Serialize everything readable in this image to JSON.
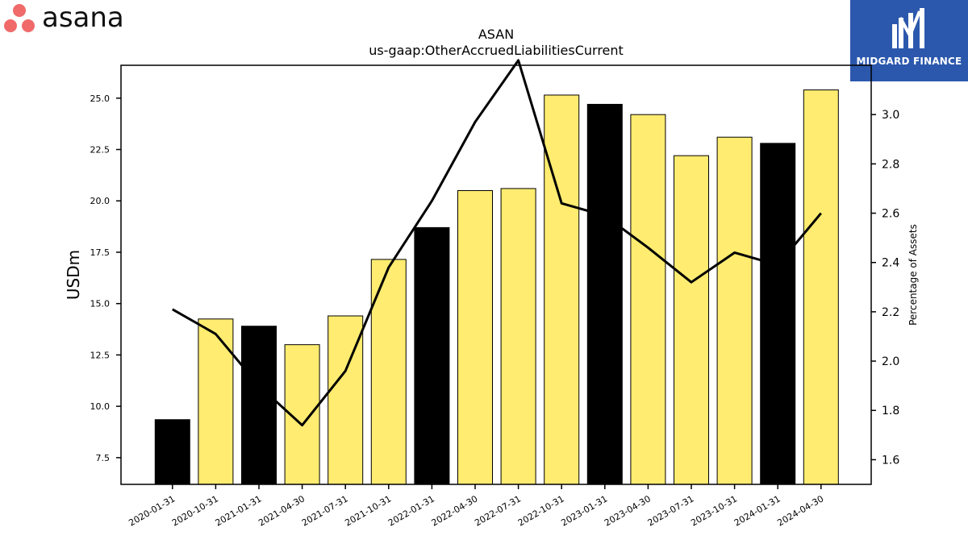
{
  "logos": {
    "left": {
      "text": "asana",
      "icon": "asana-dots-icon",
      "dot_color": "#f06a6a"
    },
    "right": {
      "text": "MIDGARD FINANCE",
      "icon": "midgard-m-icon",
      "background": "#2b58ad"
    }
  },
  "chart_data": {
    "type": "bar",
    "title": "ASAN",
    "subtitle": "us-gaap:OtherAccruedLiabilitiesCurrent",
    "ylabel": "USDm",
    "y2label": "Percentage of Assets",
    "categories": [
      "2020-01-31",
      "2020-10-31",
      "2021-01-31",
      "2021-04-30",
      "2021-07-31",
      "2021-10-31",
      "2022-01-31",
      "2022-04-30",
      "2022-07-31",
      "2022-10-31",
      "2023-01-31",
      "2023-04-30",
      "2023-07-31",
      "2023-10-31",
      "2024-01-31",
      "2024-04-30"
    ],
    "series": [
      {
        "values": [
          9.35,
          14.25,
          13.9,
          13.0,
          14.4,
          17.15,
          18.7,
          20.5,
          20.6,
          25.15,
          24.7,
          24.2,
          22.2,
          23.1,
          22.8,
          25.4
        ]
      }
    ],
    "bar_colors": [
      "#000000",
      "#ffec70",
      "#000000",
      "#ffec70",
      "#ffec70",
      "#ffec70",
      "#000000",
      "#ffec70",
      "#ffec70",
      "#ffec70",
      "#000000",
      "#ffec70",
      "#ffec70",
      "#ffec70",
      "#000000",
      "#ffec70"
    ],
    "line_series": {
      "values": [
        2.21,
        2.11,
        1.9,
        1.74,
        1.96,
        2.38,
        2.65,
        2.97,
        3.22,
        2.64,
        2.59,
        2.46,
        2.32,
        2.44,
        2.39,
        2.6
      ],
      "color": "#000000"
    },
    "ylim": [
      6.2,
      26.6
    ],
    "y2lim": [
      1.5,
      3.2
    ],
    "yticks": [
      "7.5",
      "10.0",
      "12.5",
      "15.0",
      "17.5",
      "20.0",
      "22.5",
      "25.0"
    ],
    "y2ticks": [
      "1.6",
      "1.8",
      "2.0",
      "2.2",
      "2.4",
      "2.6",
      "2.8",
      "3.0"
    ],
    "grid": false,
    "legend": "none"
  }
}
